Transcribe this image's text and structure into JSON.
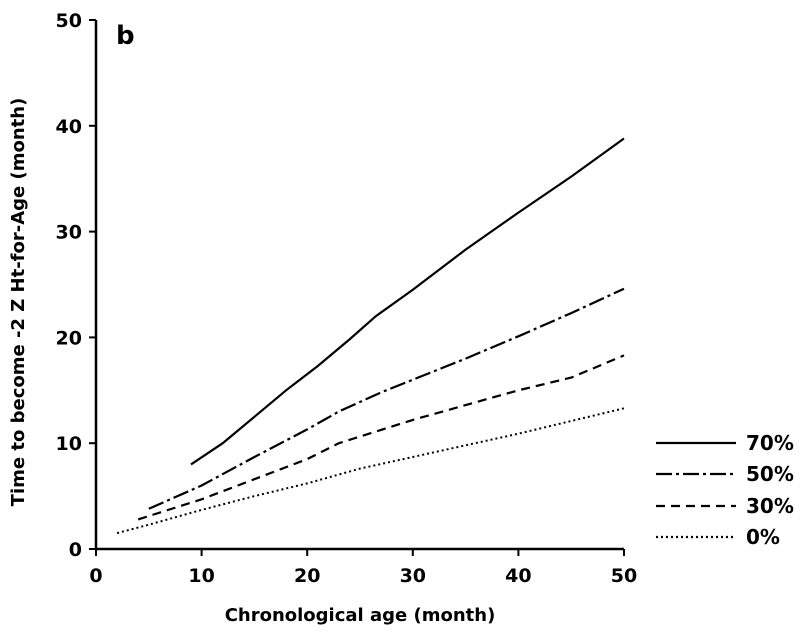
{
  "chart_data": {
    "type": "line",
    "panel_label": "b",
    "xlabel": "Chronological age (month)",
    "ylabel": "Time to become -2 Z Ht-for-Age (month)",
    "xlim": [
      0,
      50
    ],
    "ylim": [
      0,
      50
    ],
    "xticks": [
      0,
      10,
      20,
      30,
      40,
      50
    ],
    "yticks": [
      0,
      10,
      20,
      30,
      40,
      50
    ],
    "grid": false,
    "legend_position": "right",
    "series": [
      {
        "name": "70%",
        "style": "solid",
        "x": [
          9,
          12,
          15,
          18,
          21,
          24,
          26.5,
          30,
          35,
          40,
          45,
          50
        ],
        "y": [
          8,
          10,
          12.5,
          15,
          17.3,
          19.8,
          22,
          24.5,
          28.3,
          31.8,
          35.2,
          38.8
        ]
      },
      {
        "name": "50%",
        "style": "dashdot",
        "x": [
          5,
          10,
          15,
          20,
          23,
          27,
          30,
          35,
          40,
          45,
          50
        ],
        "y": [
          3.8,
          6,
          8.7,
          11.3,
          13,
          14.8,
          16,
          18,
          20.1,
          22.3,
          24.6
        ]
      },
      {
        "name": "30%",
        "style": "dashed",
        "x": [
          4,
          10,
          15,
          20,
          23,
          30,
          35,
          40,
          45,
          50
        ],
        "y": [
          2.8,
          4.7,
          6.6,
          8.5,
          10,
          12.2,
          13.6,
          15,
          16.2,
          18.3
        ]
      },
      {
        "name": "0%",
        "style": "dotted",
        "x": [
          2,
          5,
          10,
          15,
          20,
          25,
          30,
          35,
          40,
          45,
          50
        ],
        "y": [
          1.5,
          2.3,
          3.7,
          5,
          6.2,
          7.6,
          8.7,
          9.8,
          10.9,
          12.1,
          13.3
        ]
      }
    ]
  }
}
